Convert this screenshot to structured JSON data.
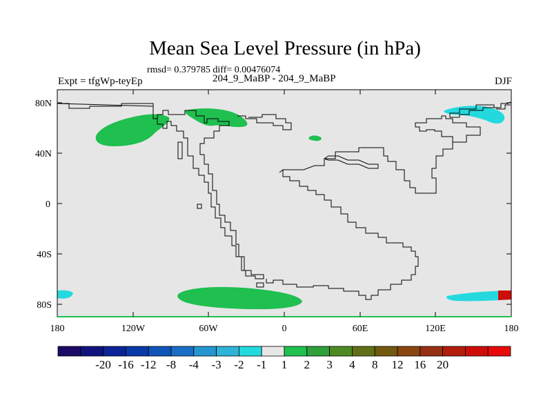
{
  "title": "Mean Sea Level Pressure (in hPa)",
  "stats": "rmsd= 0.379785 diff= 0.00476074",
  "experiment": "Expt = tfgWp-teyEp",
  "case": "204_9_MaBP - 204_9_MaBP",
  "season": "DJF",
  "y_ticks": [
    "80N",
    "40N",
    "0",
    "40S",
    "80S"
  ],
  "x_ticks": [
    "180",
    "120W",
    "60W",
    "0",
    "60E",
    "120E",
    "180"
  ],
  "colorbar": {
    "colors": [
      "#1b0a66",
      "#11127e",
      "#0c2496",
      "#0a3aa8",
      "#0f55b8",
      "#1a6ec5",
      "#2596cf",
      "#2fb3d8",
      "#24d9de",
      "#e6e6e6",
      "#1fbf50",
      "#2fa03a",
      "#4e8a24",
      "#607018",
      "#735a10",
      "#8a4610",
      "#963014",
      "#b21d0d",
      "#ce0d0a",
      "#e80a0a"
    ],
    "labels": [
      "-20",
      "-16",
      "-12",
      "-8",
      "-4",
      "-3",
      "-2",
      "-1",
      "1",
      "2",
      "3",
      "4",
      "8",
      "12",
      "16",
      "20"
    ]
  }
}
